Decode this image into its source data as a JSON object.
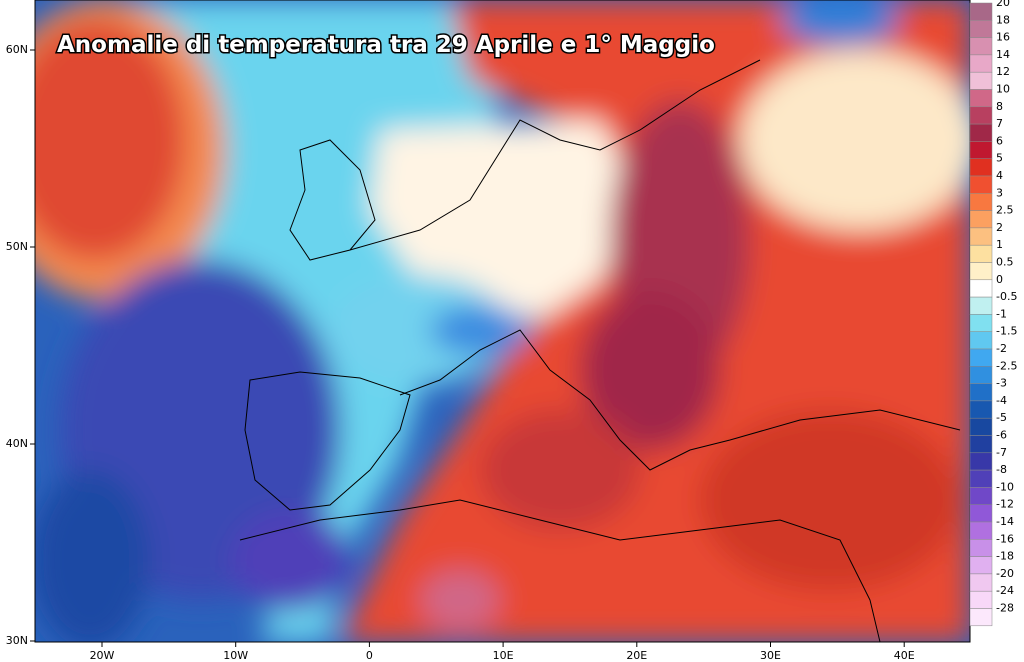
{
  "title": "Anomalie di temperatura tra 29 Aprile e 1° Maggio",
  "lat_labels": [
    "60N",
    "50N",
    "40N",
    "30N"
  ],
  "lon_labels": [
    "20W",
    "10W",
    "0",
    "10E",
    "20E",
    "30E",
    "40E"
  ],
  "legend": [
    {
      "label": "20",
      "color": "#a86888"
    },
    {
      "label": "18",
      "color": "#c07898"
    },
    {
      "label": "16",
      "color": "#d890b0"
    },
    {
      "label": "14",
      "color": "#e8a8c8"
    },
    {
      "label": "12",
      "color": "#f0c0d8"
    },
    {
      "label": "10",
      "color": "#d06888"
    },
    {
      "label": "8",
      "color": "#b84060"
    },
    {
      "label": "7",
      "color": "#a02848"
    },
    {
      "label": "6",
      "color": "#c01830"
    },
    {
      "label": "5",
      "color": "#e03020"
    },
    {
      "label": "4",
      "color": "#f05030"
    },
    {
      "label": "3",
      "color": "#f87840"
    },
    {
      "label": "2.5",
      "color": "#fca060"
    },
    {
      "label": "2",
      "color": "#fcc080"
    },
    {
      "label": "1",
      "color": "#fde0a0"
    },
    {
      "label": "0.5",
      "color": "#fff0c8"
    },
    {
      "label": "0",
      "color": "#ffffff"
    },
    {
      "label": "-0.5",
      "color": "#c0f0f0"
    },
    {
      "label": "-1",
      "color": "#80e0f0"
    },
    {
      "label": "-1.5",
      "color": "#60c8f0"
    },
    {
      "label": "-2",
      "color": "#40a8f0"
    },
    {
      "label": "-2.5",
      "color": "#3090e0"
    },
    {
      "label": "-3",
      "color": "#2070c8"
    },
    {
      "label": "-4",
      "color": "#1858b0"
    },
    {
      "label": "-5",
      "color": "#1848a0"
    },
    {
      "label": "-6",
      "color": "#2040a0"
    },
    {
      "label": "-7",
      "color": "#3838a8"
    },
    {
      "label": "-8",
      "color": "#5040b8"
    },
    {
      "label": "-10",
      "color": "#7048c8"
    },
    {
      "label": "-12",
      "color": "#9058d8"
    },
    {
      "label": "-14",
      "color": "#b070e0"
    },
    {
      "label": "-16",
      "color": "#c890e8"
    },
    {
      "label": "-18",
      "color": "#e0b0f0"
    },
    {
      "label": "-20",
      "color": "#f0c8f0"
    },
    {
      "label": "-24",
      "color": "#f8d8f8"
    },
    {
      "label": "-28",
      "color": "#fce8fc"
    }
  ]
}
